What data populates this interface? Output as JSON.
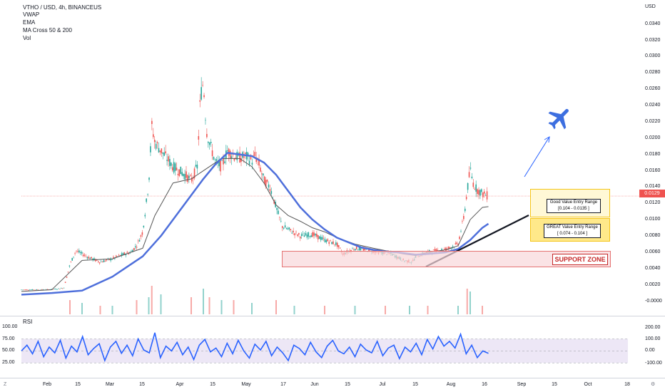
{
  "chart_data": {
    "type": "line",
    "title": "VTHO / USD, 4h, BINANCEUS",
    "indicators": [
      "VWAP",
      "EMA",
      "MA Cross 50 & 200",
      "Vol"
    ],
    "currency": "USD",
    "x_ticks": [
      "Feb",
      "15",
      "Mar",
      "15",
      "Apr",
      "15",
      "May",
      "17",
      "Jun",
      "15",
      "Jul",
      "15",
      "Aug",
      "16",
      "Sep",
      "15",
      "Oct",
      "18"
    ],
    "y_ticks": [
      "0.0340",
      "0.0320",
      "0.0300",
      "0.0280",
      "0.0260",
      "0.0240",
      "0.0220",
      "0.0200",
      "0.0180",
      "0.0160",
      "0.0140",
      "0.0120",
      "0.0100",
      "0.0080",
      "0.0060",
      "0.0040",
      "0.0020",
      "-0.0000"
    ],
    "ylim": [
      -0.0003,
      0.0352
    ],
    "current_price": "0.0129",
    "price_series": {
      "name": "VTHO / USD",
      "x": [
        0,
        0.04,
        0.06,
        0.07,
        0.08,
        0.09,
        0.11,
        0.13,
        0.15,
        0.17,
        0.18,
        0.19,
        0.2,
        0.21,
        0.215,
        0.22,
        0.23,
        0.25,
        0.27,
        0.28,
        0.29,
        0.295,
        0.3,
        0.305,
        0.31,
        0.32,
        0.33,
        0.34,
        0.35,
        0.36,
        0.37,
        0.38,
        0.385,
        0.39,
        0.4,
        0.41,
        0.42,
        0.43,
        0.44,
        0.46,
        0.48,
        0.5,
        0.52,
        0.53,
        0.55,
        0.57,
        0.59,
        0.61,
        0.63,
        0.645,
        0.65,
        0.67,
        0.7,
        0.72,
        0.73,
        0.735,
        0.74,
        0.745,
        0.75,
        0.76,
        0.77
      ],
      "y": [
        0.0014,
        0.0014,
        0.0015,
        0.0016,
        0.0045,
        0.0062,
        0.0054,
        0.0048,
        0.0052,
        0.0058,
        0.006,
        0.0068,
        0.0085,
        0.0145,
        0.0215,
        0.0195,
        0.0185,
        0.0165,
        0.0155,
        0.0148,
        0.0165,
        0.025,
        0.027,
        0.021,
        0.0195,
        0.017,
        0.0165,
        0.0185,
        0.0178,
        0.0176,
        0.0178,
        0.0172,
        0.0178,
        0.0172,
        0.0148,
        0.014,
        0.0115,
        0.0092,
        0.0088,
        0.008,
        0.0082,
        0.0075,
        0.007,
        0.0058,
        0.0065,
        0.0063,
        0.006,
        0.0058,
        0.005,
        0.0048,
        0.0055,
        0.006,
        0.0064,
        0.007,
        0.0105,
        0.0135,
        0.0162,
        0.0145,
        0.0138,
        0.0132,
        0.0129
      ]
    },
    "ema_series": {
      "name": "EMA",
      "x": [
        0,
        0.05,
        0.1,
        0.15,
        0.2,
        0.23,
        0.26,
        0.28,
        0.3,
        0.32,
        0.34,
        0.36,
        0.38,
        0.4,
        0.42,
        0.44,
        0.46,
        0.48,
        0.5,
        0.52,
        0.54,
        0.56,
        0.58,
        0.6,
        0.62,
        0.64,
        0.65,
        0.67,
        0.7,
        0.72,
        0.74,
        0.76,
        0.77
      ],
      "y": [
        0.0008,
        0.001,
        0.0013,
        0.003,
        0.0055,
        0.008,
        0.011,
        0.013,
        0.015,
        0.0168,
        0.0182,
        0.018,
        0.0178,
        0.017,
        0.0155,
        0.0135,
        0.0115,
        0.01,
        0.0088,
        0.0078,
        0.0072,
        0.0066,
        0.0063,
        0.0061,
        0.006,
        0.0058,
        0.0057,
        0.0058,
        0.006,
        0.0064,
        0.0075,
        0.009,
        0.0095
      ]
    },
    "ma_series": {
      "name": "MA Cross 50 & 200",
      "x": [
        0,
        0.05,
        0.1,
        0.15,
        0.2,
        0.22,
        0.25,
        0.28,
        0.3,
        0.33,
        0.36,
        0.38,
        0.4,
        0.42,
        0.44,
        0.46,
        0.48,
        0.5,
        0.52,
        0.55,
        0.58,
        0.6,
        0.63,
        0.65,
        0.67,
        0.7,
        0.72,
        0.74,
        0.76,
        0.77
      ],
      "y": [
        0.0012,
        0.0014,
        0.005,
        0.0052,
        0.0065,
        0.0105,
        0.0145,
        0.015,
        0.016,
        0.0175,
        0.0175,
        0.0165,
        0.0145,
        0.0118,
        0.0105,
        0.0098,
        0.009,
        0.0085,
        0.0078,
        0.007,
        0.0065,
        0.0062,
        0.0058,
        0.0056,
        0.006,
        0.0063,
        0.0068,
        0.01,
        0.0115,
        0.0116
      ]
    },
    "volume": {
      "name": "Vol",
      "x": [
        0.08,
        0.1,
        0.13,
        0.15,
        0.19,
        0.21,
        0.215,
        0.23,
        0.28,
        0.3,
        0.31,
        0.33,
        0.35,
        0.38,
        0.42,
        0.45,
        0.5,
        0.55,
        0.6,
        0.64,
        0.67,
        0.72,
        0.735,
        0.74,
        0.76
      ],
      "values": [
        0.5,
        0.4,
        0.3,
        0.3,
        0.5,
        0.6,
        1.0,
        0.7,
        0.6,
        0.9,
        0.6,
        0.5,
        0.5,
        0.4,
        0.5,
        0.3,
        0.3,
        0.3,
        0.3,
        0.3,
        0.3,
        0.3,
        0.9,
        0.8,
        0.3
      ]
    },
    "rsi": {
      "label": "RSI",
      "y_ticks": [
        "100.00",
        "75.00",
        "50.00",
        "25.00"
      ],
      "y_ticks_right": [
        "200.00",
        "100.00",
        "0.00",
        "-100.00"
      ],
      "band": [
        25,
        75
      ],
      "values": [
        50,
        62,
        44,
        70,
        38,
        58,
        46,
        72,
        35,
        60,
        48,
        80,
        42,
        55,
        65,
        30,
        58,
        70,
        45,
        62,
        40,
        75,
        52,
        46,
        88,
        36,
        60,
        50,
        68,
        42,
        58,
        32,
        62,
        74,
        48,
        56,
        38,
        66,
        44,
        72,
        50,
        35,
        64,
        52,
        70,
        40,
        58,
        46,
        30,
        62,
        55,
        42,
        68,
        48,
        36,
        60,
        72,
        50,
        44,
        58,
        38,
        64,
        52,
        46,
        70,
        40,
        56,
        62,
        34,
        58,
        48,
        66,
        42,
        74,
        54,
        80,
        60,
        70,
        56,
        85,
        44,
        62,
        36,
        50,
        45
      ]
    },
    "annotations": {
      "good_value": {
        "line1": "Good Value Entry Range",
        "line2": "[0.104 - 0.0135 ]"
      },
      "great_value": {
        "line1": "GREAT Value Entry Range",
        "line2": "[ 0.074 - 0.104 ]"
      },
      "support": {
        "label": "SUPPORT ZONE"
      }
    },
    "grid": false
  },
  "ui": {
    "corner_left": "Z",
    "corner_right": "⚙"
  },
  "colors": {
    "up": "#26a69a",
    "down": "#ef5350",
    "ema": "#4e6fdb",
    "ma": "#555555",
    "rsi_line": "#2962ff",
    "rsi_band": "#ede7f6",
    "support_fill": "#f8d7da",
    "support_border": "#e57373",
    "gold_border": "#f5c518",
    "gold_fill": "#fff3c4",
    "current_price_bg": "#ef5350",
    "trend_line": "#131722",
    "arrow": "#2962ff"
  }
}
